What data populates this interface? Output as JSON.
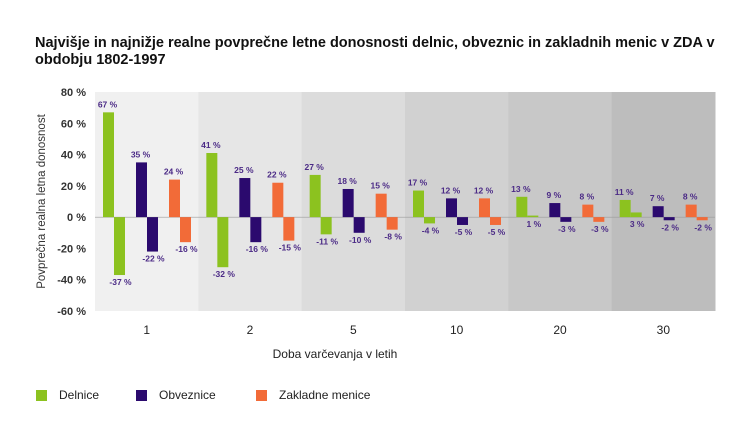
{
  "chart_data": {
    "type": "bar",
    "title": "Najvišje in najnižje realne povprečne letne donosnosti delnic, obveznic in zakladnih menic v ZDA v obdobju 1802-1997",
    "xlabel": "Doba varčevanja v letih",
    "ylabel": "Povprečna realna letna donosnost",
    "categories": [
      "1",
      "2",
      "5",
      "10",
      "20",
      "30"
    ],
    "ylim": [
      -60,
      80
    ],
    "yticks": [
      80,
      60,
      40,
      20,
      0,
      -20,
      -40,
      -60
    ],
    "ytick_labels": [
      "80 %",
      "60 %",
      "40 %",
      "20 %",
      "0 %",
      "-20 %",
      "-40 %",
      "-60 %"
    ],
    "series": [
      {
        "name": "Delnice",
        "color": "#8cc21f",
        "max": [
          67,
          41,
          27,
          17,
          13,
          11
        ],
        "min": [
          -37,
          -32,
          -11,
          -4,
          1,
          3
        ],
        "max_labels": [
          "67 %",
          "41 %",
          "27 %",
          "17 %",
          "13 %",
          "11 %"
        ],
        "min_labels": [
          "-37 %",
          "-32 %",
          "-11 %",
          "-4 %",
          "1 %",
          "3 %"
        ]
      },
      {
        "name": "Obveznice",
        "color": "#2b0a6e",
        "max": [
          35,
          25,
          18,
          12,
          9,
          7
        ],
        "min": [
          -22,
          -16,
          -10,
          -5,
          -3,
          -2
        ],
        "max_labels": [
          "35 %",
          "25 %",
          "18 %",
          "12 %",
          "9 %",
          "7 %"
        ],
        "min_labels": [
          "-22 %",
          "-16 %",
          "-10 %",
          "-5 %",
          "-3 %",
          "-2 %"
        ]
      },
      {
        "name": "Zakladne menice",
        "color": "#f26b38",
        "max": [
          24,
          22,
          15,
          12,
          8,
          8
        ],
        "min": [
          -16,
          -15,
          -8,
          -5,
          -3,
          -2
        ],
        "max_labels": [
          "24 %",
          "22 %",
          "15 %",
          "12 %",
          "8 %",
          "8 %"
        ],
        "min_labels": [
          "-16 %",
          "-15 %",
          "-8 %",
          "-5 %",
          "-3 %",
          "-2 %"
        ]
      }
    ],
    "background_bands": [
      "#f0f0f0",
      "#e6e6e6",
      "#dcdcdc",
      "#d1d1d1",
      "#c8c8c8",
      "#bdbdbd"
    ],
    "label_color": "#4b2a86",
    "legend_position": "bottom-left",
    "grid": false
  }
}
